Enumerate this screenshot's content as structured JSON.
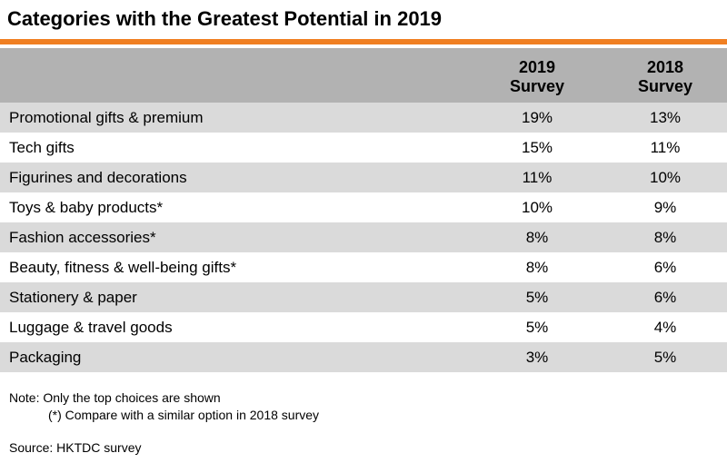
{
  "title": "Categories with the Greatest Potential in 2019",
  "colors": {
    "accent_rule": "#f07f22",
    "header_bg": "#b2b2b2",
    "stripe_bg": "#dadada",
    "plain_bg": "#ffffff"
  },
  "chart_data": {
    "type": "table",
    "title": "Categories with the Greatest Potential in 2019",
    "columns": [
      {
        "line1": "2019",
        "line2": "Survey"
      },
      {
        "line1": "2018",
        "line2": "Survey"
      }
    ],
    "categories": [
      "Promotional gifts & premium",
      "Tech gifts",
      "Figurines and decorations",
      "Toys & baby products*",
      "Fashion accessories*",
      "Beauty, fitness & well-being gifts*",
      "Stationery & paper",
      "Luggage & travel goods",
      "Packaging"
    ],
    "series": [
      {
        "name": "2019 Survey",
        "values": [
          19,
          15,
          11,
          10,
          8,
          8,
          5,
          5,
          3
        ]
      },
      {
        "name": "2018 Survey",
        "values": [
          13,
          11,
          10,
          9,
          8,
          6,
          6,
          4,
          5
        ]
      }
    ],
    "unit": "%"
  },
  "notes": {
    "line1": "Note: Only the top choices are shown",
    "line2": "(*) Compare with a similar option in 2018 survey"
  },
  "source": "Source: HKTDC survey"
}
